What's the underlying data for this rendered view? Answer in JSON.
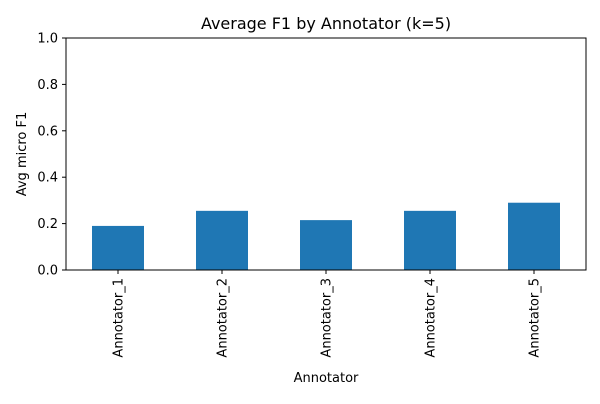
{
  "chart_data": {
    "type": "bar",
    "title": "Average F1 by Annotator (k=5)",
    "xlabel": "Annotator",
    "ylabel": "Avg micro F1",
    "categories": [
      "Annotator_1",
      "Annotator_2",
      "Annotator_3",
      "Annotator_4",
      "Annotator_5"
    ],
    "values": [
      0.19,
      0.255,
      0.215,
      0.255,
      0.29
    ],
    "ylim": [
      0,
      1
    ],
    "yticks": [
      0.0,
      0.2,
      0.4,
      0.6,
      0.8,
      1.0
    ],
    "ytick_labels": [
      "0.0",
      "0.2",
      "0.4",
      "0.6",
      "0.8",
      "1.0"
    ],
    "grid": false,
    "legend": "none",
    "colors": {
      "bar": "#1f77b4",
      "axis": "#000000",
      "background": "#ffffff"
    }
  }
}
